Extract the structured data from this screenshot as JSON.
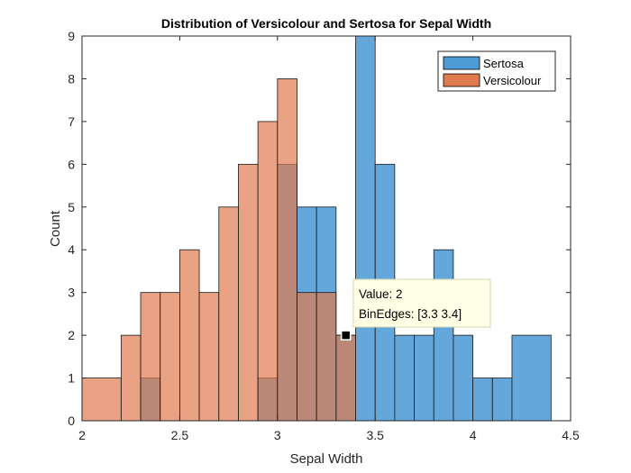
{
  "chart_data": {
    "type": "bar",
    "title": "Distribution of Versicolour and Sertosa for Sepal Width",
    "xlabel": "Sepal Width",
    "ylabel": "Count",
    "xlim": [
      2,
      4.5
    ],
    "ylim": [
      0,
      9
    ],
    "xticks": [
      "2",
      "2.5",
      "3",
      "3.5",
      "4",
      "4.5"
    ],
    "yticks": [
      "0",
      "1",
      "2",
      "3",
      "4",
      "5",
      "6",
      "7",
      "8",
      "9"
    ],
    "grid": false,
    "legend_position": "top-right",
    "colors": {
      "sertosa": "#4f9bd6",
      "versicolour": "#e07a4f",
      "overlap": "#a86c5f"
    },
    "series": [
      {
        "name": "Sertosa",
        "bins": [
          {
            "edges": [
              2.3,
              2.4
            ],
            "value": 1
          },
          {
            "edges": [
              2.9,
              3.0
            ],
            "value": 1
          },
          {
            "edges": [
              3.0,
              3.1
            ],
            "value": 6
          },
          {
            "edges": [
              3.1,
              3.2
            ],
            "value": 5
          },
          {
            "edges": [
              3.2,
              3.3
            ],
            "value": 5
          },
          {
            "edges": [
              3.3,
              3.4
            ],
            "value": 2
          },
          {
            "edges": [
              3.4,
              3.5
            ],
            "value": 9
          },
          {
            "edges": [
              3.5,
              3.6
            ],
            "value": 6
          },
          {
            "edges": [
              3.6,
              3.7
            ],
            "value": 2
          },
          {
            "edges": [
              3.7,
              3.8
            ],
            "value": 2
          },
          {
            "edges": [
              3.8,
              3.9
            ],
            "value": 4
          },
          {
            "edges": [
              3.9,
              4.0
            ],
            "value": 2
          },
          {
            "edges": [
              4.0,
              4.1
            ],
            "value": 1
          },
          {
            "edges": [
              4.1,
              4.2
            ],
            "value": 1
          },
          {
            "edges": [
              4.2,
              4.4
            ],
            "value": 2
          }
        ]
      },
      {
        "name": "Versicolour",
        "bins": [
          {
            "edges": [
              2.0,
              2.2
            ],
            "value": 1
          },
          {
            "edges": [
              2.2,
              2.3
            ],
            "value": 2
          },
          {
            "edges": [
              2.3,
              2.4
            ],
            "value": 3
          },
          {
            "edges": [
              2.4,
              2.5
            ],
            "value": 3
          },
          {
            "edges": [
              2.5,
              2.6
            ],
            "value": 4
          },
          {
            "edges": [
              2.6,
              2.7
            ],
            "value": 3
          },
          {
            "edges": [
              2.7,
              2.8
            ],
            "value": 5
          },
          {
            "edges": [
              2.8,
              2.9
            ],
            "value": 6
          },
          {
            "edges": [
              2.9,
              3.0
            ],
            "value": 7
          },
          {
            "edges": [
              3.0,
              3.1
            ],
            "value": 8
          },
          {
            "edges": [
              3.1,
              3.2
            ],
            "value": 3
          },
          {
            "edges": [
              3.2,
              3.3
            ],
            "value": 3
          },
          {
            "edges": [
              3.3,
              3.4
            ],
            "value": 2
          }
        ]
      }
    ],
    "datatip": {
      "value_text": "Value: 2",
      "edges_text": "BinEdges: [3.3 3.4]",
      "x": 3.35,
      "y": 2
    }
  }
}
